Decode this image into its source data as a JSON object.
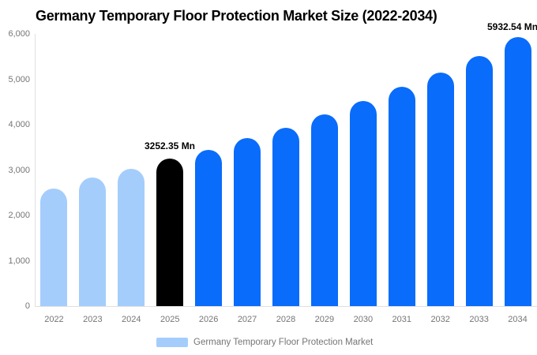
{
  "chart_data": {
    "type": "bar",
    "title": "Germany Temporary Floor Protection Market Size (2022-2034)",
    "unit": "Mn",
    "categories": [
      "2022",
      "2023",
      "2024",
      "2025",
      "2026",
      "2027",
      "2028",
      "2029",
      "2030",
      "2031",
      "2032",
      "2033",
      "2034"
    ],
    "values": [
      2600,
      2840,
      3030,
      3252.35,
      3450,
      3700,
      3930,
      4230,
      4520,
      4840,
      5150,
      5520,
      5932.54
    ],
    "segments": [
      "historical",
      "historical",
      "historical",
      "base_year",
      "forecast",
      "forecast",
      "forecast",
      "forecast",
      "forecast",
      "forecast",
      "forecast",
      "forecast",
      "forecast"
    ],
    "segment_colors": {
      "historical": "#a4cdfc",
      "base_year": "#000000",
      "forecast": "#0a6cfa"
    },
    "y_ticks": [
      "6,000",
      "5,000",
      "4,000",
      "3,000",
      "2,000",
      "1,000",
      "0"
    ],
    "ylim": [
      0,
      6000
    ],
    "grid": false,
    "xlabel": "",
    "ylabel": "",
    "annotations": [
      {
        "category": "2025",
        "text": "3252.35 Mn"
      },
      {
        "category": "2034",
        "text": "5932.54 Mn"
      }
    ],
    "legend": {
      "position": "bottom",
      "items": [
        {
          "label": "Germany Temporary Floor Protection Market",
          "color": "#a4cdfc"
        }
      ]
    },
    "axis_label_color": "#757575",
    "axis_line_color": "#e0e0e0"
  }
}
